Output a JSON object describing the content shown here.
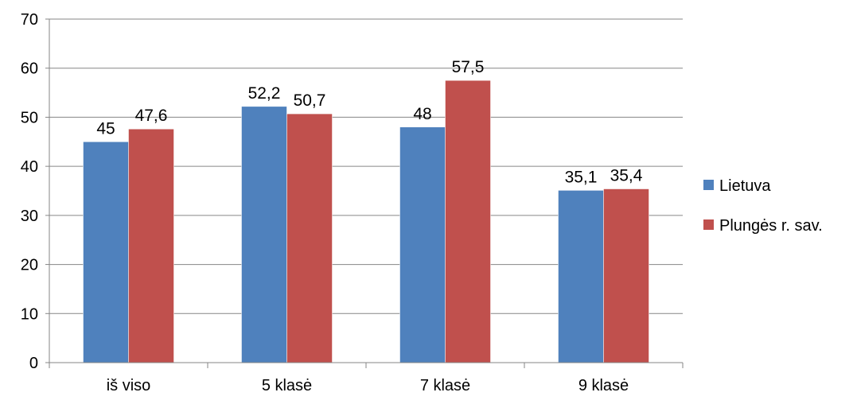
{
  "chart_data": {
    "type": "bar",
    "categories": [
      "iš viso",
      "5 klasė",
      "7 klasė",
      "9 klasė"
    ],
    "series": [
      {
        "name": "Lietuva",
        "values": [
          45,
          52.2,
          48,
          35.1
        ],
        "labels": [
          "45",
          "52,2",
          "48",
          "35,1"
        ],
        "color": "#4F81BD"
      },
      {
        "name": "Plungės r. sav.",
        "values": [
          47.6,
          50.7,
          57.5,
          35.4
        ],
        "labels": [
          "47,6",
          "50,7",
          "57,5",
          "35,4"
        ],
        "color": "#C0504D"
      }
    ],
    "ylim": [
      0,
      70
    ],
    "yticks": [
      0,
      10,
      20,
      30,
      40,
      50,
      60,
      70
    ],
    "grid": true,
    "legend": "right",
    "title": "",
    "xlabel": "",
    "ylabel": ""
  }
}
